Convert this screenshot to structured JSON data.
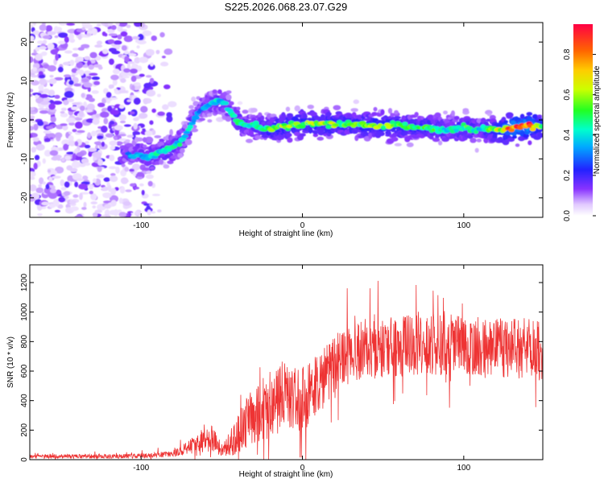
{
  "title": "S225.2026.068.23.07.G29",
  "chart_data": [
    {
      "type": "heatmap",
      "title": "S225.2026.068.23.07.G29",
      "xlabel": "Height of straight line (km)",
      "ylabel": "Frequency (Hz)",
      "xlim": [
        -169,
        149
      ],
      "ylim": [
        -25,
        25
      ],
      "x_ticks": [
        "-100",
        "0",
        "100"
      ],
      "y_ticks": [
        "-20",
        "-10",
        "0",
        "10",
        "20"
      ],
      "colorbar": {
        "label": "Normalized spectral amplitude",
        "range": [
          0,
          0.95
        ],
        "ticks": [
          "0.0",
          "0.2",
          "0.4",
          "0.6",
          "0.8"
        ]
      },
      "ridge_x": [
        -105,
        -95,
        -85,
        -75,
        -70,
        -65,
        -60,
        -55,
        -50,
        -45,
        -40,
        -35,
        -30,
        -20,
        -10,
        0,
        10,
        20,
        30,
        40,
        50,
        60,
        70,
        80,
        90,
        100,
        110,
        120,
        130,
        140,
        149
      ],
      "ridge_freq": [
        -9,
        -9,
        -8,
        -6,
        -2,
        2,
        3.5,
        4.5,
        5,
        3,
        -0.5,
        -1.5,
        -1.5,
        -2.5,
        -1.5,
        -1,
        -1,
        -1,
        -1,
        -1.5,
        -1.5,
        -1.5,
        -2,
        -2,
        -2.5,
        -2,
        -2.5,
        -2.5,
        -2,
        -1.5,
        -1.5
      ],
      "ridge_peak_amplitude": [
        0.35,
        0.4,
        0.45,
        0.45,
        0.4,
        0.35,
        0.35,
        0.4,
        0.4,
        0.4,
        0.45,
        0.45,
        0.45,
        0.55,
        0.6,
        0.6,
        0.6,
        0.6,
        0.55,
        0.6,
        0.6,
        0.6,
        0.5,
        0.55,
        0.45,
        0.55,
        0.45,
        0.6,
        0.9,
        0.9,
        0.6
      ]
    },
    {
      "type": "line",
      "xlabel": "Height of straight line (km)",
      "ylabel": "SNR (10 * v/v)",
      "xlim": [
        -169,
        149
      ],
      "ylim": [
        0,
        1320
      ],
      "x_ticks": [
        "-100",
        "0",
        "100"
      ],
      "y_ticks": [
        "0",
        "200",
        "400",
        "600",
        "800",
        "1000",
        "1200"
      ],
      "color": "#ee3333",
      "envelope_x": [
        -169,
        -120,
        -100,
        -85,
        -75,
        -65,
        -55,
        -50,
        -45,
        -40,
        -30,
        -20,
        -10,
        0,
        10,
        20,
        30,
        50,
        70,
        90,
        110,
        130,
        149
      ],
      "envelope_mean": [
        22,
        22,
        25,
        35,
        60,
        120,
        150,
        60,
        100,
        180,
        300,
        380,
        440,
        400,
        520,
        620,
        740,
        760,
        780,
        780,
        760,
        760,
        740
      ],
      "envelope_spread": [
        18,
        18,
        20,
        25,
        40,
        90,
        120,
        60,
        110,
        180,
        250,
        280,
        300,
        280,
        260,
        260,
        260,
        260,
        260,
        260,
        260,
        260,
        260
      ]
    }
  ]
}
